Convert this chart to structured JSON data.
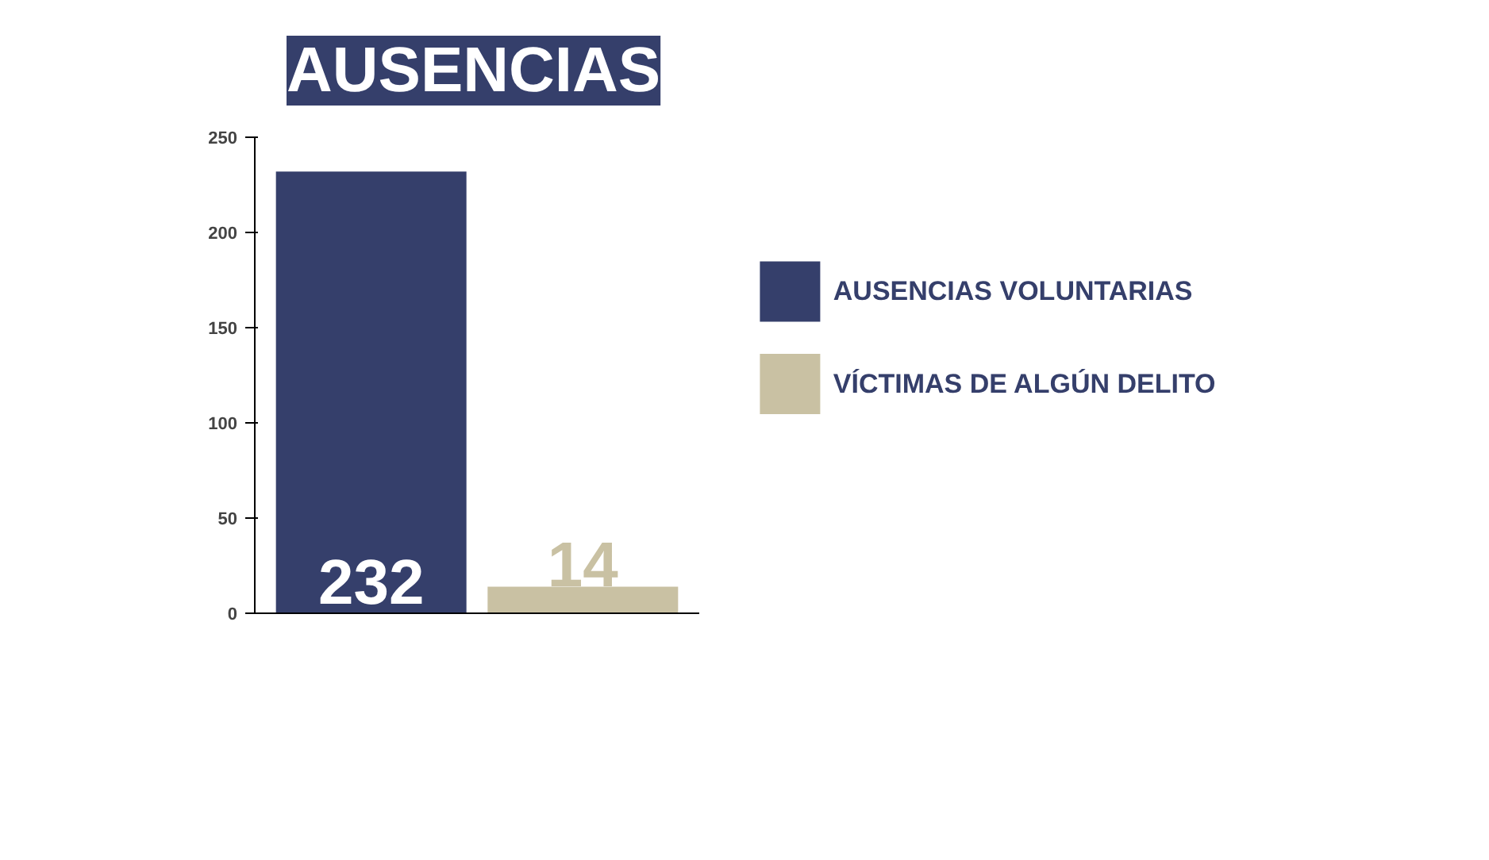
{
  "chart_data": {
    "type": "bar",
    "title": "AUSENCIAS",
    "categories": [
      null,
      null
    ],
    "series": [
      {
        "name": "AUSENCIAS VOLUNTARIAS",
        "color": "#353f6b",
        "values": [
          232,
          null
        ]
      },
      {
        "name": "VÍCTIMAS DE ALGÚN DELITO",
        "color": "#c9c1a3",
        "values": [
          null,
          14
        ]
      }
    ],
    "ylim": [
      0,
      250
    ],
    "yticks": [
      0,
      50,
      100,
      150,
      200,
      250
    ],
    "data_labels": true,
    "legend": "right",
    "grid": false
  }
}
